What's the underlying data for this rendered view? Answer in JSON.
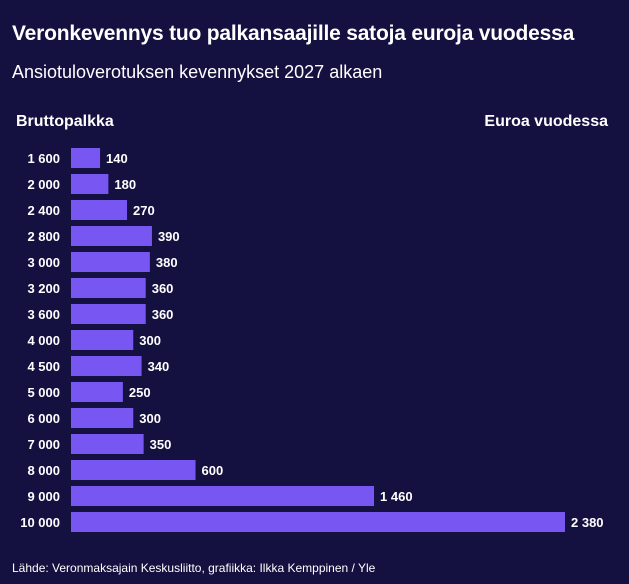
{
  "header": {
    "title": "Veronkevennys tuo palkansaajille satoja euroja vuodessa",
    "subtitle": "Ansiotuloverotuksen kevennykset 2027 alkaen",
    "left_column_label": "Bruttopalkka",
    "right_column_label": "Euroa vuodessa"
  },
  "footer": {
    "source": "Lähde: Veronmaksajain Keskusliitto, grafiikka: Ilkka Kemppinen / Yle"
  },
  "colors": {
    "background": "#141040",
    "bar": "#7756f2",
    "text": "#ffffff"
  },
  "chart_data": {
    "type": "bar",
    "orientation": "horizontal",
    "title": "Veronkevennys tuo palkansaajille satoja euroja vuodessa",
    "subtitle": "Ansiotuloverotuksen kevennykset 2027 alkaen",
    "xlabel": "Euroa vuodessa",
    "ylabel": "Bruttopalkka",
    "categories": [
      "1 600",
      "2 000",
      "2 400",
      "2 800",
      "3 000",
      "3 200",
      "3 600",
      "4 000",
      "4 500",
      "5 000",
      "6 000",
      "7 000",
      "8 000",
      "9 000",
      "10 000"
    ],
    "values": [
      140,
      180,
      270,
      390,
      380,
      360,
      360,
      300,
      340,
      250,
      300,
      350,
      600,
      1460,
      2380
    ],
    "value_labels": [
      "140",
      "180",
      "270",
      "390",
      "380",
      "360",
      "360",
      "300",
      "340",
      "250",
      "300",
      "350",
      "600",
      "1 460",
      "2 380"
    ],
    "xlim": [
      0,
      2380
    ],
    "grid": false,
    "legend": "none"
  }
}
